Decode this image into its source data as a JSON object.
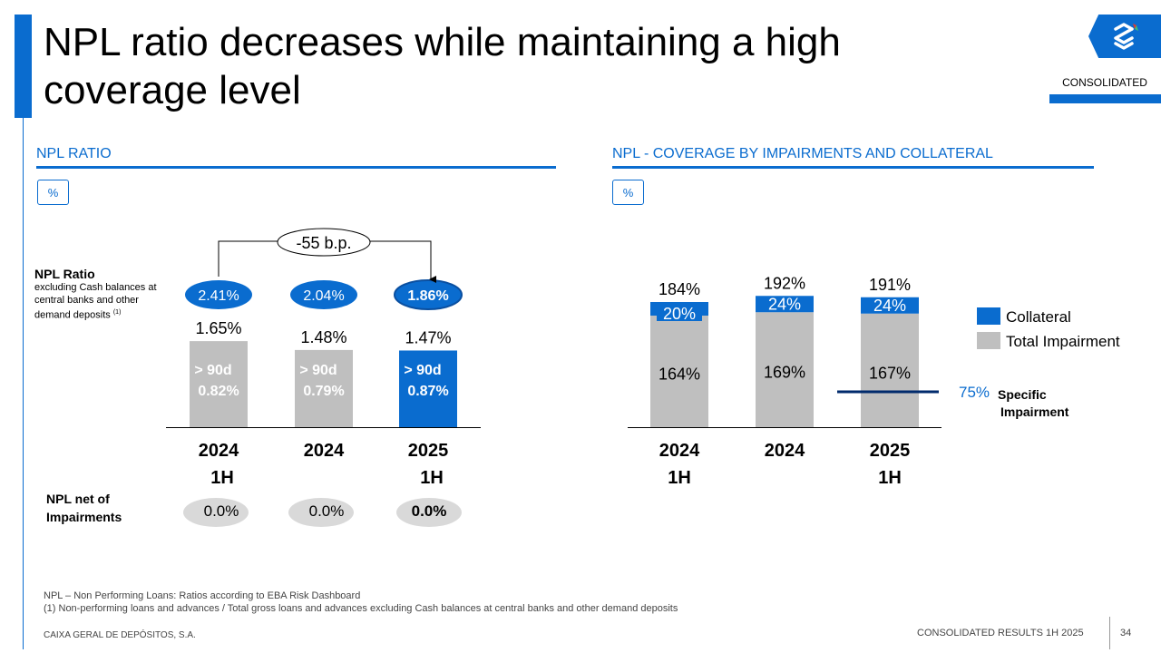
{
  "title": "NPL ratio decreases while maintaining a high coverage level",
  "badge": "CONSOLIDATED",
  "colors": {
    "accent": "#0a6ccf",
    "gray": "#bfbfbf",
    "navy": "#002a6c"
  },
  "left": {
    "section_title": "NPL RATIO",
    "unit": "%",
    "annotation": "-55 b.p.",
    "npl_ratio_label": "NPL Ratio",
    "npl_ratio_note": "excluding Cash balances at central banks and other demand deposits",
    "npl_ratio_note_ref": "(1)",
    "net_label_1": "NPL net of",
    "net_label_2": "Impairments"
  },
  "right": {
    "section_title": "NPL - COVERAGE BY IMPAIRMENTS AND COLLATERAL",
    "unit": "%",
    "legend": {
      "collateral": "Collateral",
      "impairment": "Total Impairment"
    },
    "specific_value": "75%",
    "specific_label_1": "Specific",
    "specific_label_2": "Impairment"
  },
  "chart_data": [
    {
      "type": "bar",
      "title": "NPL RATIO",
      "categories": [
        [
          "2024",
          "1H"
        ],
        [
          "2024"
        ],
        [
          "2025",
          "1H"
        ]
      ],
      "series": [
        {
          "name": "NPL ratio",
          "values": [
            1.65,
            1.48,
            1.47
          ],
          "labels": [
            "1.65%",
            "1.48%",
            "1.47%"
          ]
        },
        {
          "name": "> 90d",
          "values": [
            0.82,
            0.79,
            0.87
          ],
          "labels": [
            "0.82%",
            "0.79%",
            "0.87%"
          ]
        }
      ],
      "over90_label": "> 90d",
      "npl_ratio_excl_cash": [
        "2.41%",
        "2.04%",
        "1.86%"
      ],
      "npl_net_of_impairments": [
        "0.0%",
        "0.0%",
        "0.0%"
      ],
      "highlight_index": 2,
      "ylim": [
        0,
        1.9
      ]
    },
    {
      "type": "bar",
      "title": "NPL - COVERAGE BY IMPAIRMENTS AND COLLATERAL",
      "stacked": true,
      "categories": [
        [
          "2024",
          "1H"
        ],
        [
          "2024"
        ],
        [
          "2025",
          "1H"
        ]
      ],
      "series": [
        {
          "name": "Total Impairment",
          "values": [
            164,
            169,
            167
          ],
          "labels": [
            "164%",
            "169%",
            "167%"
          ]
        },
        {
          "name": "Collateral",
          "values": [
            20,
            24,
            24
          ],
          "labels": [
            "20%",
            "24%",
            "24%"
          ]
        }
      ],
      "totals": [
        "184%",
        "192%",
        "191%"
      ],
      "reference_line": {
        "label": "75% Specific Impairment",
        "value": 75,
        "category_index": 2
      },
      "ylim": [
        0,
        200
      ]
    }
  ],
  "footnotes": {
    "line1": "NPL – Non Performing Loans: Ratios according to EBA Risk Dashboard",
    "line2": "(1) Non-performing loans and advances / Total gross loans and advances excluding Cash balances at central banks and other demand deposits"
  },
  "footer": {
    "company": "CAIXA GERAL DE DEPÓSITOS, S.A.",
    "report": "CONSOLIDATED RESULTS 1H 2025",
    "page": "34"
  }
}
